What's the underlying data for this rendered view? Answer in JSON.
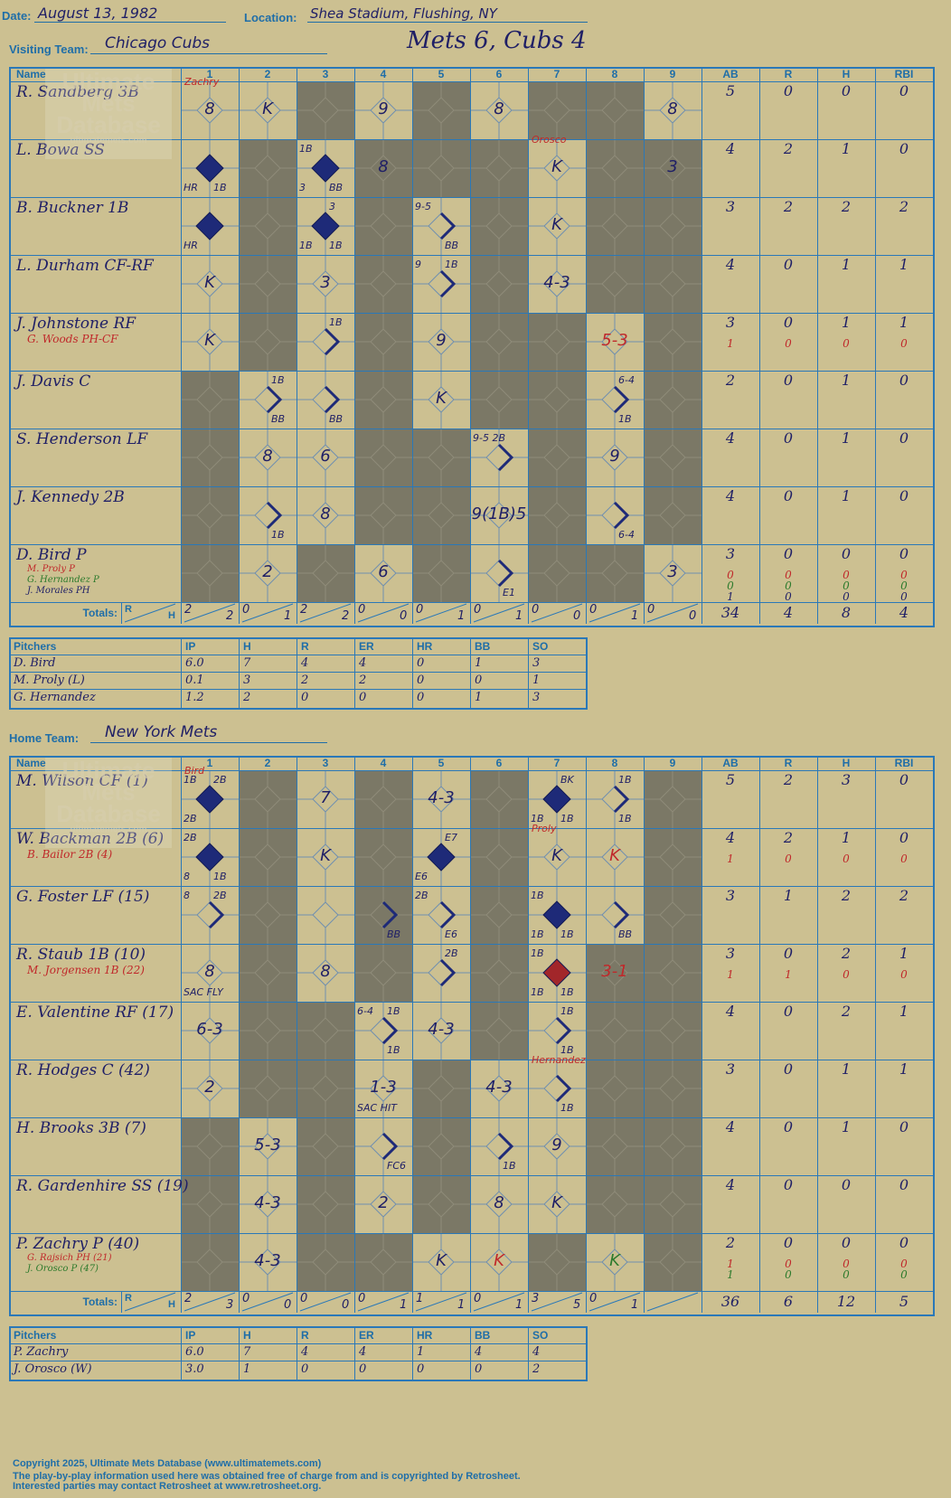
{
  "header": {
    "date_label": "Date:",
    "date": "August 13, 1982",
    "location_label": "Location:",
    "location": "Shea Stadium, Flushing, NY",
    "visiting_label": "Visiting Team:",
    "visiting_team": "Chicago Cubs",
    "score_title": "Mets 6, Cubs 4",
    "home_label": "Home Team:",
    "home_team": "New York Mets"
  },
  "columns": {
    "name": "Name",
    "innings": [
      "1",
      "2",
      "3",
      "4",
      "5",
      "6",
      "7",
      "8",
      "9"
    ],
    "stats": [
      "AB",
      "R",
      "H",
      "RBI"
    ],
    "totals": "Totals:",
    "r": "R",
    "h": "H"
  },
  "watermark": {
    "line1": "Ultimate",
    "line2": "Mets",
    "line3": "Database",
    "url": "ultimatemets.com"
  },
  "colors": {
    "background": "#ccc091",
    "shade": "#7b7866",
    "grid": "#2a78b8",
    "ink": "#1f1f66",
    "red": "#c0282a",
    "green": "#2c7a2c"
  },
  "visitors": {
    "rows": [
      {
        "name": "R. Sandberg 3B",
        "subs": [],
        "stats": [
          [
            "5",
            "0",
            "0",
            "0"
          ]
        ]
      },
      {
        "name": "L. Bowa SS",
        "subs": [],
        "stats": [
          [
            "4",
            "2",
            "1",
            "0"
          ]
        ]
      },
      {
        "name": "B. Buckner 1B",
        "subs": [],
        "stats": [
          [
            "3",
            "2",
            "2",
            "2"
          ]
        ]
      },
      {
        "name": "L. Durham CF-RF",
        "subs": [],
        "stats": [
          [
            "4",
            "0",
            "1",
            "1"
          ]
        ]
      },
      {
        "name": "J. Johnstone RF",
        "subs": [
          {
            "text": "G. Woods PH-CF",
            "color": "red"
          }
        ],
        "stats": [
          [
            "3",
            "0",
            "1",
            "1"
          ],
          [
            "1",
            "0",
            "0",
            "0"
          ]
        ]
      },
      {
        "name": "J. Davis C",
        "subs": [],
        "stats": [
          [
            "2",
            "0",
            "1",
            "0"
          ]
        ]
      },
      {
        "name": "S. Henderson LF",
        "subs": [],
        "stats": [
          [
            "4",
            "0",
            "1",
            "0"
          ]
        ]
      },
      {
        "name": "J. Kennedy 2B",
        "subs": [],
        "stats": [
          [
            "4",
            "0",
            "1",
            "0"
          ]
        ]
      },
      {
        "name": "D. Bird P",
        "subs": [
          {
            "text": "M. Proly P",
            "color": "red"
          },
          {
            "text": "G. Hernandez P",
            "color": "green"
          },
          {
            "text": "J. Morales PH",
            "color": "ink"
          }
        ],
        "stats": [
          [
            "3",
            "0",
            "0",
            "0"
          ],
          [
            "0",
            "0",
            "0",
            "0"
          ],
          [
            "0",
            "0",
            "0",
            "0"
          ],
          [
            "1",
            "0",
            "0",
            "0"
          ]
        ]
      }
    ],
    "shade": [
      [
        0,
        0,
        1,
        0,
        1,
        0,
        1,
        1,
        0
      ],
      [
        0,
        1,
        0,
        1,
        1,
        1,
        0,
        1,
        1
      ],
      [
        0,
        1,
        0,
        1,
        0,
        1,
        0,
        1,
        1
      ],
      [
        0,
        1,
        0,
        1,
        0,
        1,
        0,
        1,
        1
      ],
      [
        0,
        1,
        0,
        1,
        0,
        1,
        1,
        0,
        1
      ],
      [
        1,
        0,
        0,
        1,
        0,
        1,
        1,
        0,
        1
      ],
      [
        1,
        0,
        0,
        1,
        1,
        0,
        1,
        0,
        1
      ],
      [
        1,
        0,
        0,
        1,
        1,
        0,
        1,
        0,
        1
      ],
      [
        1,
        0,
        1,
        0,
        1,
        0,
        1,
        1,
        0
      ]
    ],
    "plays": [
      {
        "r": 0,
        "c": 0,
        "mark": "8",
        "above": "Zachry",
        "aboveColor": "red"
      },
      {
        "r": 0,
        "c": 1,
        "mark": "K"
      },
      {
        "r": 0,
        "c": 3,
        "mark": "9"
      },
      {
        "r": 0,
        "c": 5,
        "mark": "8"
      },
      {
        "r": 0,
        "c": 8,
        "mark": "8"
      },
      {
        "r": 1,
        "c": 0,
        "run": true,
        "bl": "HR",
        "br": "1B"
      },
      {
        "r": 1,
        "c": 2,
        "run": true,
        "tl": "1B",
        "bl": "3",
        "br": "BB"
      },
      {
        "r": 1,
        "c": 3,
        "mark": "8"
      },
      {
        "r": 1,
        "c": 6,
        "mark": "K",
        "above": "Orosco",
        "aboveColor": "red"
      },
      {
        "r": 1,
        "c": 8,
        "mark": "3"
      },
      {
        "r": 2,
        "c": 0,
        "run": true,
        "bl": "HR"
      },
      {
        "r": 2,
        "c": 2,
        "run": true,
        "tr": "3",
        "bl": "1B",
        "br": "1B"
      },
      {
        "r": 2,
        "c": 4,
        "base": true,
        "tl": "9-5",
        "br": "BB"
      },
      {
        "r": 2,
        "c": 6,
        "mark": "K"
      },
      {
        "r": 3,
        "c": 0,
        "mark": "K"
      },
      {
        "r": 3,
        "c": 2,
        "mark": "3"
      },
      {
        "r": 3,
        "c": 4,
        "base": true,
        "tl": "9",
        "tr": "1B"
      },
      {
        "r": 3,
        "c": 6,
        "mark": "4-3"
      },
      {
        "r": 4,
        "c": 0,
        "mark": "K"
      },
      {
        "r": 4,
        "c": 2,
        "base": true,
        "tr": "1B"
      },
      {
        "r": 4,
        "c": 4,
        "mark": "9"
      },
      {
        "r": 4,
        "c": 7,
        "mark": "5-3",
        "markColor": "red"
      },
      {
        "r": 5,
        "c": 1,
        "base": true,
        "tr": "1B",
        "br": "BB"
      },
      {
        "r": 5,
        "c": 2,
        "base": true,
        "br": "BB"
      },
      {
        "r": 5,
        "c": 4,
        "mark": "K"
      },
      {
        "r": 5,
        "c": 7,
        "base": true,
        "tr": "6-4",
        "br": "1B"
      },
      {
        "r": 6,
        "c": 1,
        "mark": "8"
      },
      {
        "r": 6,
        "c": 2,
        "mark": "6"
      },
      {
        "r": 6,
        "c": 5,
        "base": true,
        "tl": "9-5 2B"
      },
      {
        "r": 6,
        "c": 7,
        "mark": "9"
      },
      {
        "r": 7,
        "c": 1,
        "base": true,
        "br": "1B"
      },
      {
        "r": 7,
        "c": 2,
        "mark": "8"
      },
      {
        "r": 7,
        "c": 5,
        "mark": "9(1B)5"
      },
      {
        "r": 7,
        "c": 7,
        "base": true,
        "br": "6-4"
      },
      {
        "r": 8,
        "c": 1,
        "mark": "2"
      },
      {
        "r": 8,
        "c": 3,
        "mark": "6"
      },
      {
        "r": 8,
        "c": 5,
        "base": true,
        "br": "E1"
      },
      {
        "r": 8,
        "c": 8,
        "mark": "3"
      }
    ],
    "totals_rh": [
      [
        "2",
        "2"
      ],
      [
        "0",
        "1"
      ],
      [
        "2",
        "2"
      ],
      [
        "0",
        "0"
      ],
      [
        "0",
        "1"
      ],
      [
        "0",
        "1"
      ],
      [
        "0",
        "0"
      ],
      [
        "0",
        "1"
      ],
      [
        "0",
        "0"
      ]
    ],
    "totals_stats": [
      "34",
      "4",
      "8",
      "4"
    ],
    "pitchers": {
      "headers": [
        "Pitchers",
        "IP",
        "H",
        "R",
        "ER",
        "HR",
        "BB",
        "SO"
      ],
      "rows": [
        [
          "D. Bird",
          "6.0",
          "7",
          "4",
          "4",
          "0",
          "1",
          "3"
        ],
        [
          "M. Proly (L)",
          "0.1",
          "3",
          "2",
          "2",
          "0",
          "0",
          "1"
        ],
        [
          "G. Hernandez",
          "1.2",
          "2",
          "0",
          "0",
          "0",
          "1",
          "3"
        ]
      ]
    }
  },
  "home": {
    "rows": [
      {
        "name": "M. Wilson CF (1)",
        "subs": [],
        "stats": [
          [
            "5",
            "2",
            "3",
            "0"
          ]
        ]
      },
      {
        "name": "W. Backman 2B (6)",
        "subs": [
          {
            "text": "B. Bailor 2B (4)",
            "color": "red"
          }
        ],
        "stats": [
          [
            "4",
            "2",
            "1",
            "0"
          ],
          [
            "1",
            "0",
            "0",
            "0"
          ]
        ]
      },
      {
        "name": "G. Foster LF (15)",
        "subs": [],
        "stats": [
          [
            "3",
            "1",
            "2",
            "2"
          ]
        ]
      },
      {
        "name": "R. Staub 1B (10)",
        "subs": [
          {
            "text": "M. Jorgensen 1B (22)",
            "color": "red"
          }
        ],
        "stats": [
          [
            "3",
            "0",
            "2",
            "1"
          ],
          [
            "1",
            "1",
            "0",
            "0"
          ]
        ]
      },
      {
        "name": "E. Valentine RF (17)",
        "subs": [],
        "stats": [
          [
            "4",
            "0",
            "2",
            "1"
          ]
        ]
      },
      {
        "name": "R. Hodges C (42)",
        "subs": [],
        "stats": [
          [
            "3",
            "0",
            "1",
            "1"
          ]
        ]
      },
      {
        "name": "H. Brooks 3B (7)",
        "subs": [],
        "stats": [
          [
            "4",
            "0",
            "1",
            "0"
          ]
        ]
      },
      {
        "name": "R. Gardenhire SS (19)",
        "subs": [],
        "stats": [
          [
            "4",
            "0",
            "0",
            "0"
          ]
        ]
      },
      {
        "name": "P. Zachry P (40)",
        "subs": [
          {
            "text": "G. Rajsich PH (21)",
            "color": "red"
          },
          {
            "text": "J. Orosco P (47)",
            "color": "green"
          }
        ],
        "stats": [
          [
            "2",
            "0",
            "0",
            "0"
          ],
          [
            "1",
            "0",
            "0",
            "0"
          ],
          [
            "1",
            "0",
            "0",
            "0"
          ]
        ]
      }
    ],
    "shade": [
      [
        0,
        1,
        0,
        1,
        0,
        1,
        0,
        0,
        1
      ],
      [
        0,
        1,
        0,
        1,
        0,
        1,
        0,
        0,
        1
      ],
      [
        0,
        1,
        0,
        1,
        0,
        1,
        0,
        0,
        1
      ],
      [
        0,
        1,
        0,
        1,
        0,
        1,
        0,
        1,
        1
      ],
      [
        0,
        1,
        1,
        0,
        0,
        1,
        0,
        1,
        1
      ],
      [
        0,
        1,
        1,
        0,
        1,
        0,
        0,
        1,
        1
      ],
      [
        1,
        0,
        1,
        0,
        1,
        0,
        0,
        1,
        1
      ],
      [
        1,
        0,
        1,
        0,
        1,
        0,
        0,
        1,
        1
      ],
      [
        1,
        0,
        1,
        1,
        0,
        0,
        1,
        0,
        1
      ]
    ],
    "plays": [
      {
        "r": 0,
        "c": 0,
        "run": true,
        "tl": "1B",
        "tr": "2B",
        "bl": "2B",
        "above": "Bird",
        "aboveColor": "red"
      },
      {
        "r": 0,
        "c": 2,
        "mark": "7"
      },
      {
        "r": 0,
        "c": 4,
        "mark": "4-3"
      },
      {
        "r": 0,
        "c": 6,
        "run": true,
        "tr": "BK",
        "bl": "1B",
        "br": "1B"
      },
      {
        "r": 0,
        "c": 7,
        "base": true,
        "tr": "1B",
        "br": "1B"
      },
      {
        "r": 1,
        "c": 0,
        "run": true,
        "tl": "2B",
        "bl": "8",
        "br": "1B"
      },
      {
        "r": 1,
        "c": 2,
        "mark": "K"
      },
      {
        "r": 1,
        "c": 4,
        "run": true,
        "tr": "E7",
        "bl": "E6"
      },
      {
        "r": 1,
        "c": 6,
        "mark": "K",
        "above": "Proly",
        "aboveColor": "red"
      },
      {
        "r": 1,
        "c": 7,
        "mark": "K",
        "markColor": "red"
      },
      {
        "r": 2,
        "c": 0,
        "base": true,
        "tl": "8",
        "tr": "2B"
      },
      {
        "r": 2,
        "c": 3,
        "base": true,
        "br": "BB"
      },
      {
        "r": 2,
        "c": 4,
        "base": true,
        "tl": "2B",
        "br": "E6"
      },
      {
        "r": 2,
        "c": 6,
        "run": true,
        "tl": "1B",
        "bl": "1B",
        "br": "1B"
      },
      {
        "r": 2,
        "c": 7,
        "base": true,
        "br": "BB"
      },
      {
        "r": 3,
        "c": 0,
        "mark": "8",
        "bl": "SAC FLY"
      },
      {
        "r": 3,
        "c": 2,
        "mark": "8"
      },
      {
        "r": 3,
        "c": 4,
        "base": true,
        "tr": "2B"
      },
      {
        "r": 3,
        "c": 6,
        "run": true,
        "red": true,
        "tl": "1B",
        "bl": "1B",
        "br": "1B"
      },
      {
        "r": 3,
        "c": 7,
        "mark": "3-1",
        "markColor": "red"
      },
      {
        "r": 4,
        "c": 0,
        "mark": "6-3"
      },
      {
        "r": 4,
        "c": 3,
        "base": true,
        "tl": "6-4",
        "tr": "1B",
        "br": "1B"
      },
      {
        "r": 4,
        "c": 4,
        "mark": "4-3"
      },
      {
        "r": 4,
        "c": 6,
        "base": true,
        "tr": "1B",
        "br": "1B"
      },
      {
        "r": 5,
        "c": 0,
        "mark": "2"
      },
      {
        "r": 5,
        "c": 3,
        "mark": "1-3",
        "bl": "SAC HIT"
      },
      {
        "r": 5,
        "c": 5,
        "mark": "4-3"
      },
      {
        "r": 5,
        "c": 6,
        "base": true,
        "br": "1B",
        "above": "Hernandez",
        "aboveColor": "red"
      },
      {
        "r": 6,
        "c": 1,
        "mark": "5-3"
      },
      {
        "r": 6,
        "c": 3,
        "base": true,
        "br": "FC6"
      },
      {
        "r": 6,
        "c": 5,
        "base": true,
        "br": "1B"
      },
      {
        "r": 6,
        "c": 6,
        "mark": "9"
      },
      {
        "r": 7,
        "c": 1,
        "mark": "4-3"
      },
      {
        "r": 7,
        "c": 3,
        "mark": "2"
      },
      {
        "r": 7,
        "c": 5,
        "mark": "8"
      },
      {
        "r": 7,
        "c": 6,
        "mark": "K"
      },
      {
        "r": 8,
        "c": 1,
        "mark": "4-3"
      },
      {
        "r": 8,
        "c": 4,
        "mark": "K"
      },
      {
        "r": 8,
        "c": 5,
        "mark": "K",
        "markColor": "red"
      },
      {
        "r": 8,
        "c": 7,
        "mark": "K",
        "markColor": "green"
      }
    ],
    "totals_rh": [
      [
        "2",
        "3"
      ],
      [
        "0",
        "0"
      ],
      [
        "0",
        "0"
      ],
      [
        "0",
        "1"
      ],
      [
        "1",
        "1"
      ],
      [
        "0",
        "1"
      ],
      [
        "3",
        "5"
      ],
      [
        "0",
        "1"
      ],
      [
        "",
        ""
      ]
    ],
    "totals_stats": [
      "36",
      "6",
      "12",
      "5"
    ],
    "pitchers": {
      "headers": [
        "Pitchers",
        "IP",
        "H",
        "R",
        "ER",
        "HR",
        "BB",
        "SO"
      ],
      "rows": [
        [
          "P. Zachry",
          "6.0",
          "7",
          "4",
          "4",
          "1",
          "4",
          "4"
        ],
        [
          "J. Orosco (W)",
          "3.0",
          "1",
          "0",
          "0",
          "0",
          "0",
          "2"
        ]
      ]
    }
  },
  "footer": {
    "line1": "Copyright 2025, Ultimate Mets Database (www.ultimatemets.com)",
    "line2": "The play-by-play information used here was obtained free of charge from and is copyrighted by Retrosheet.",
    "line3": "Interested parties may contact Retrosheet at www.retrosheet.org."
  }
}
